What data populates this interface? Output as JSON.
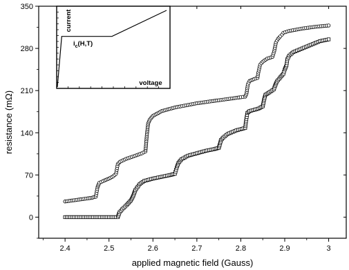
{
  "chart_data": {
    "type": "scatter",
    "title": "",
    "xlabel": "applied magnetic field (Gauss)",
    "ylabel": "resistance (mΩ)",
    "xlim": [
      2.34,
      3.04
    ],
    "ylim": [
      -35,
      350
    ],
    "x_ticks": [
      "2.4",
      "2.5",
      "2.6",
      "2.7",
      "2.8",
      "2.9",
      "3"
    ],
    "y_ticks": [
      "0",
      "70",
      "140",
      "210",
      "280",
      "350"
    ],
    "grid": false,
    "legend": "none",
    "series": [
      {
        "marker": "circle",
        "points": [
          [
            2.4,
            26
          ],
          [
            2.42,
            28
          ],
          [
            2.44,
            30
          ],
          [
            2.46,
            32
          ],
          [
            2.47,
            34
          ],
          [
            2.474,
            50
          ],
          [
            2.478,
            57
          ],
          [
            2.49,
            61
          ],
          [
            2.5,
            64
          ],
          [
            2.51,
            68
          ],
          [
            2.516,
            72
          ],
          [
            2.52,
            88
          ],
          [
            2.525,
            92
          ],
          [
            2.54,
            97
          ],
          [
            2.56,
            102
          ],
          [
            2.575,
            106
          ],
          [
            2.583,
            109
          ],
          [
            2.586,
            135
          ],
          [
            2.589,
            155
          ],
          [
            2.593,
            162
          ],
          [
            2.6,
            168
          ],
          [
            2.62,
            176
          ],
          [
            2.65,
            182
          ],
          [
            2.7,
            189
          ],
          [
            2.75,
            194
          ],
          [
            2.78,
            197
          ],
          [
            2.8,
            199
          ],
          [
            2.81,
            200
          ],
          [
            2.813,
            205
          ],
          [
            2.816,
            220
          ],
          [
            2.82,
            226
          ],
          [
            2.83,
            229
          ],
          [
            2.838,
            231
          ],
          [
            2.84,
            240
          ],
          [
            2.844,
            253
          ],
          [
            2.85,
            258
          ],
          [
            2.86,
            263
          ],
          [
            2.872,
            266
          ],
          [
            2.876,
            275
          ],
          [
            2.88,
            290
          ],
          [
            2.885,
            296
          ],
          [
            2.89,
            300
          ],
          [
            2.894,
            303
          ],
          [
            2.897,
            306
          ],
          [
            2.91,
            309
          ],
          [
            2.94,
            313
          ],
          [
            2.97,
            316
          ],
          [
            3.0,
            318
          ]
        ]
      },
      {
        "marker": "square",
        "points": [
          [
            2.4,
            0
          ],
          [
            2.44,
            0
          ],
          [
            2.48,
            0
          ],
          [
            2.5,
            0
          ],
          [
            2.52,
            0
          ],
          [
            2.524,
            8
          ],
          [
            2.53,
            13
          ],
          [
            2.54,
            20
          ],
          [
            2.55,
            28
          ],
          [
            2.555,
            35
          ],
          [
            2.56,
            45
          ],
          [
            2.57,
            55
          ],
          [
            2.58,
            60
          ],
          [
            2.6,
            64
          ],
          [
            2.62,
            67
          ],
          [
            2.64,
            70
          ],
          [
            2.65,
            72
          ],
          [
            2.654,
            82
          ],
          [
            2.658,
            90
          ],
          [
            2.665,
            96
          ],
          [
            2.68,
            102
          ],
          [
            2.7,
            106
          ],
          [
            2.72,
            110
          ],
          [
            2.74,
            113
          ],
          [
            2.75,
            115
          ],
          [
            2.752,
            120
          ],
          [
            2.755,
            128
          ],
          [
            2.76,
            132
          ],
          [
            2.77,
            138
          ],
          [
            2.79,
            144
          ],
          [
            2.81,
            148
          ],
          [
            2.812,
            160
          ],
          [
            2.815,
            173
          ],
          [
            2.82,
            176
          ],
          [
            2.84,
            180
          ],
          [
            2.85,
            184
          ],
          [
            2.853,
            195
          ],
          [
            2.856,
            203
          ],
          [
            2.865,
            207
          ],
          [
            2.875,
            212
          ],
          [
            2.878,
            218
          ],
          [
            2.882,
            225
          ],
          [
            2.89,
            232
          ],
          [
            2.897,
            238
          ],
          [
            2.9,
            245
          ],
          [
            2.904,
            252
          ],
          [
            2.906,
            262
          ],
          [
            2.91,
            268
          ],
          [
            2.92,
            274
          ],
          [
            2.94,
            280
          ],
          [
            2.96,
            286
          ],
          [
            2.98,
            292
          ],
          [
            3.0,
            295
          ]
        ]
      }
    ],
    "inset": {
      "xlabel": "voltage",
      "ylabel": "current",
      "annotation": "i",
      "annotation_sub": "c",
      "annotation_rest": "(H,T)",
      "curve": [
        [
          0,
          0
        ],
        [
          0.04,
          0.66
        ],
        [
          0.5,
          0.66
        ],
        [
          1.0,
          1.0
        ]
      ]
    }
  }
}
